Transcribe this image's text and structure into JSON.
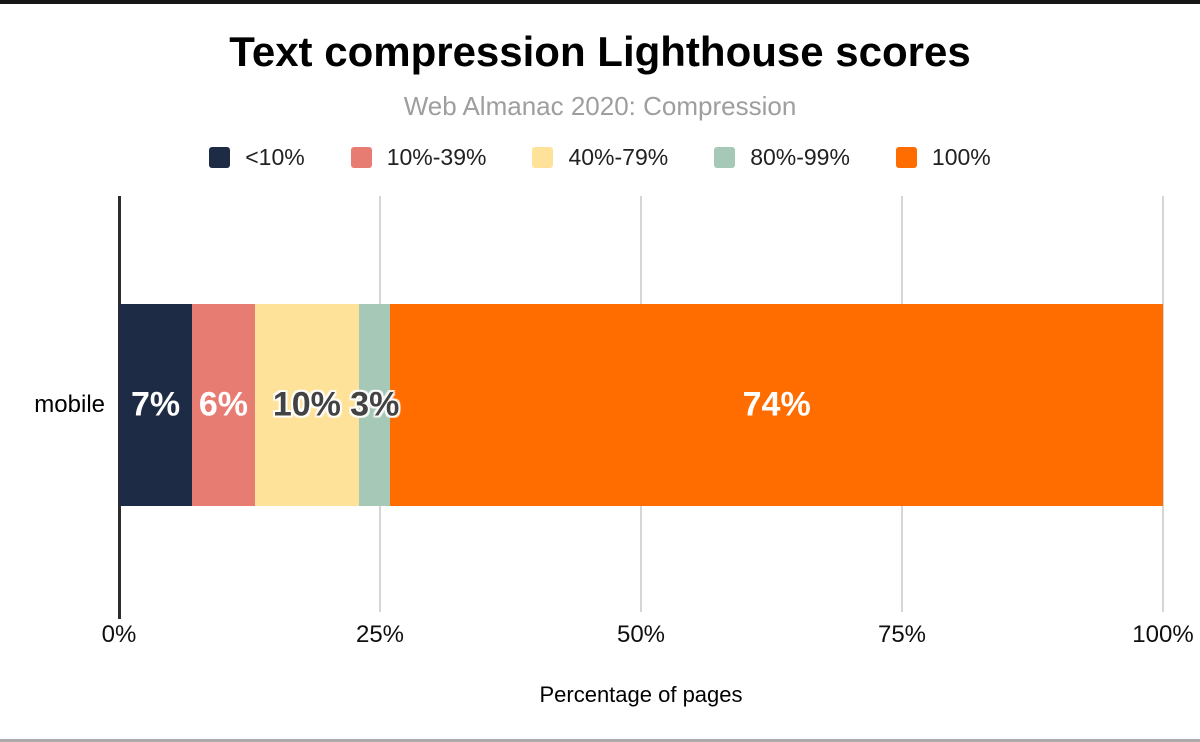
{
  "chart_data": {
    "type": "bar",
    "orientation": "horizontal",
    "stacked": true,
    "title": "Text compression Lighthouse scores",
    "subtitle": "Web Almanac 2020: Compression",
    "xlabel": "Percentage of pages",
    "categories": [
      "mobile"
    ],
    "series": [
      {
        "name": "<10%",
        "values": [
          7
        ],
        "label": "7%",
        "color": "#1e2b45",
        "label_color": "#ffffff",
        "halo": false
      },
      {
        "name": "10%-39%",
        "values": [
          6
        ],
        "label": "6%",
        "color": "#e77c73",
        "label_color": "#ffffff",
        "halo": false
      },
      {
        "name": "40%-79%",
        "values": [
          10
        ],
        "label": "10%",
        "color": "#ffe29a",
        "label_color": "#434343",
        "halo": true
      },
      {
        "name": "80%-99%",
        "values": [
          3
        ],
        "label": "3%",
        "color": "#a6c8b7",
        "label_color": "#434343",
        "halo": true
      },
      {
        "name": "100%",
        "values": [
          74
        ],
        "label": "74%",
        "color": "#ff6d00",
        "label_color": "#ffffff",
        "halo": false
      }
    ],
    "x_ticks": [
      {
        "label": "0%",
        "value": 0
      },
      {
        "label": "25%",
        "value": 25
      },
      {
        "label": "50%",
        "value": 50
      },
      {
        "label": "75%",
        "value": 75
      },
      {
        "label": "100%",
        "value": 100
      }
    ],
    "xlim": [
      0,
      100
    ],
    "legend_position": "top",
    "grid": true,
    "style": {
      "subtitle_color": "#9e9e9e",
      "gridline_color": "#d6d6d6",
      "axis_color": "#2d2d2d",
      "text_color": "#0f0f0f"
    }
  }
}
